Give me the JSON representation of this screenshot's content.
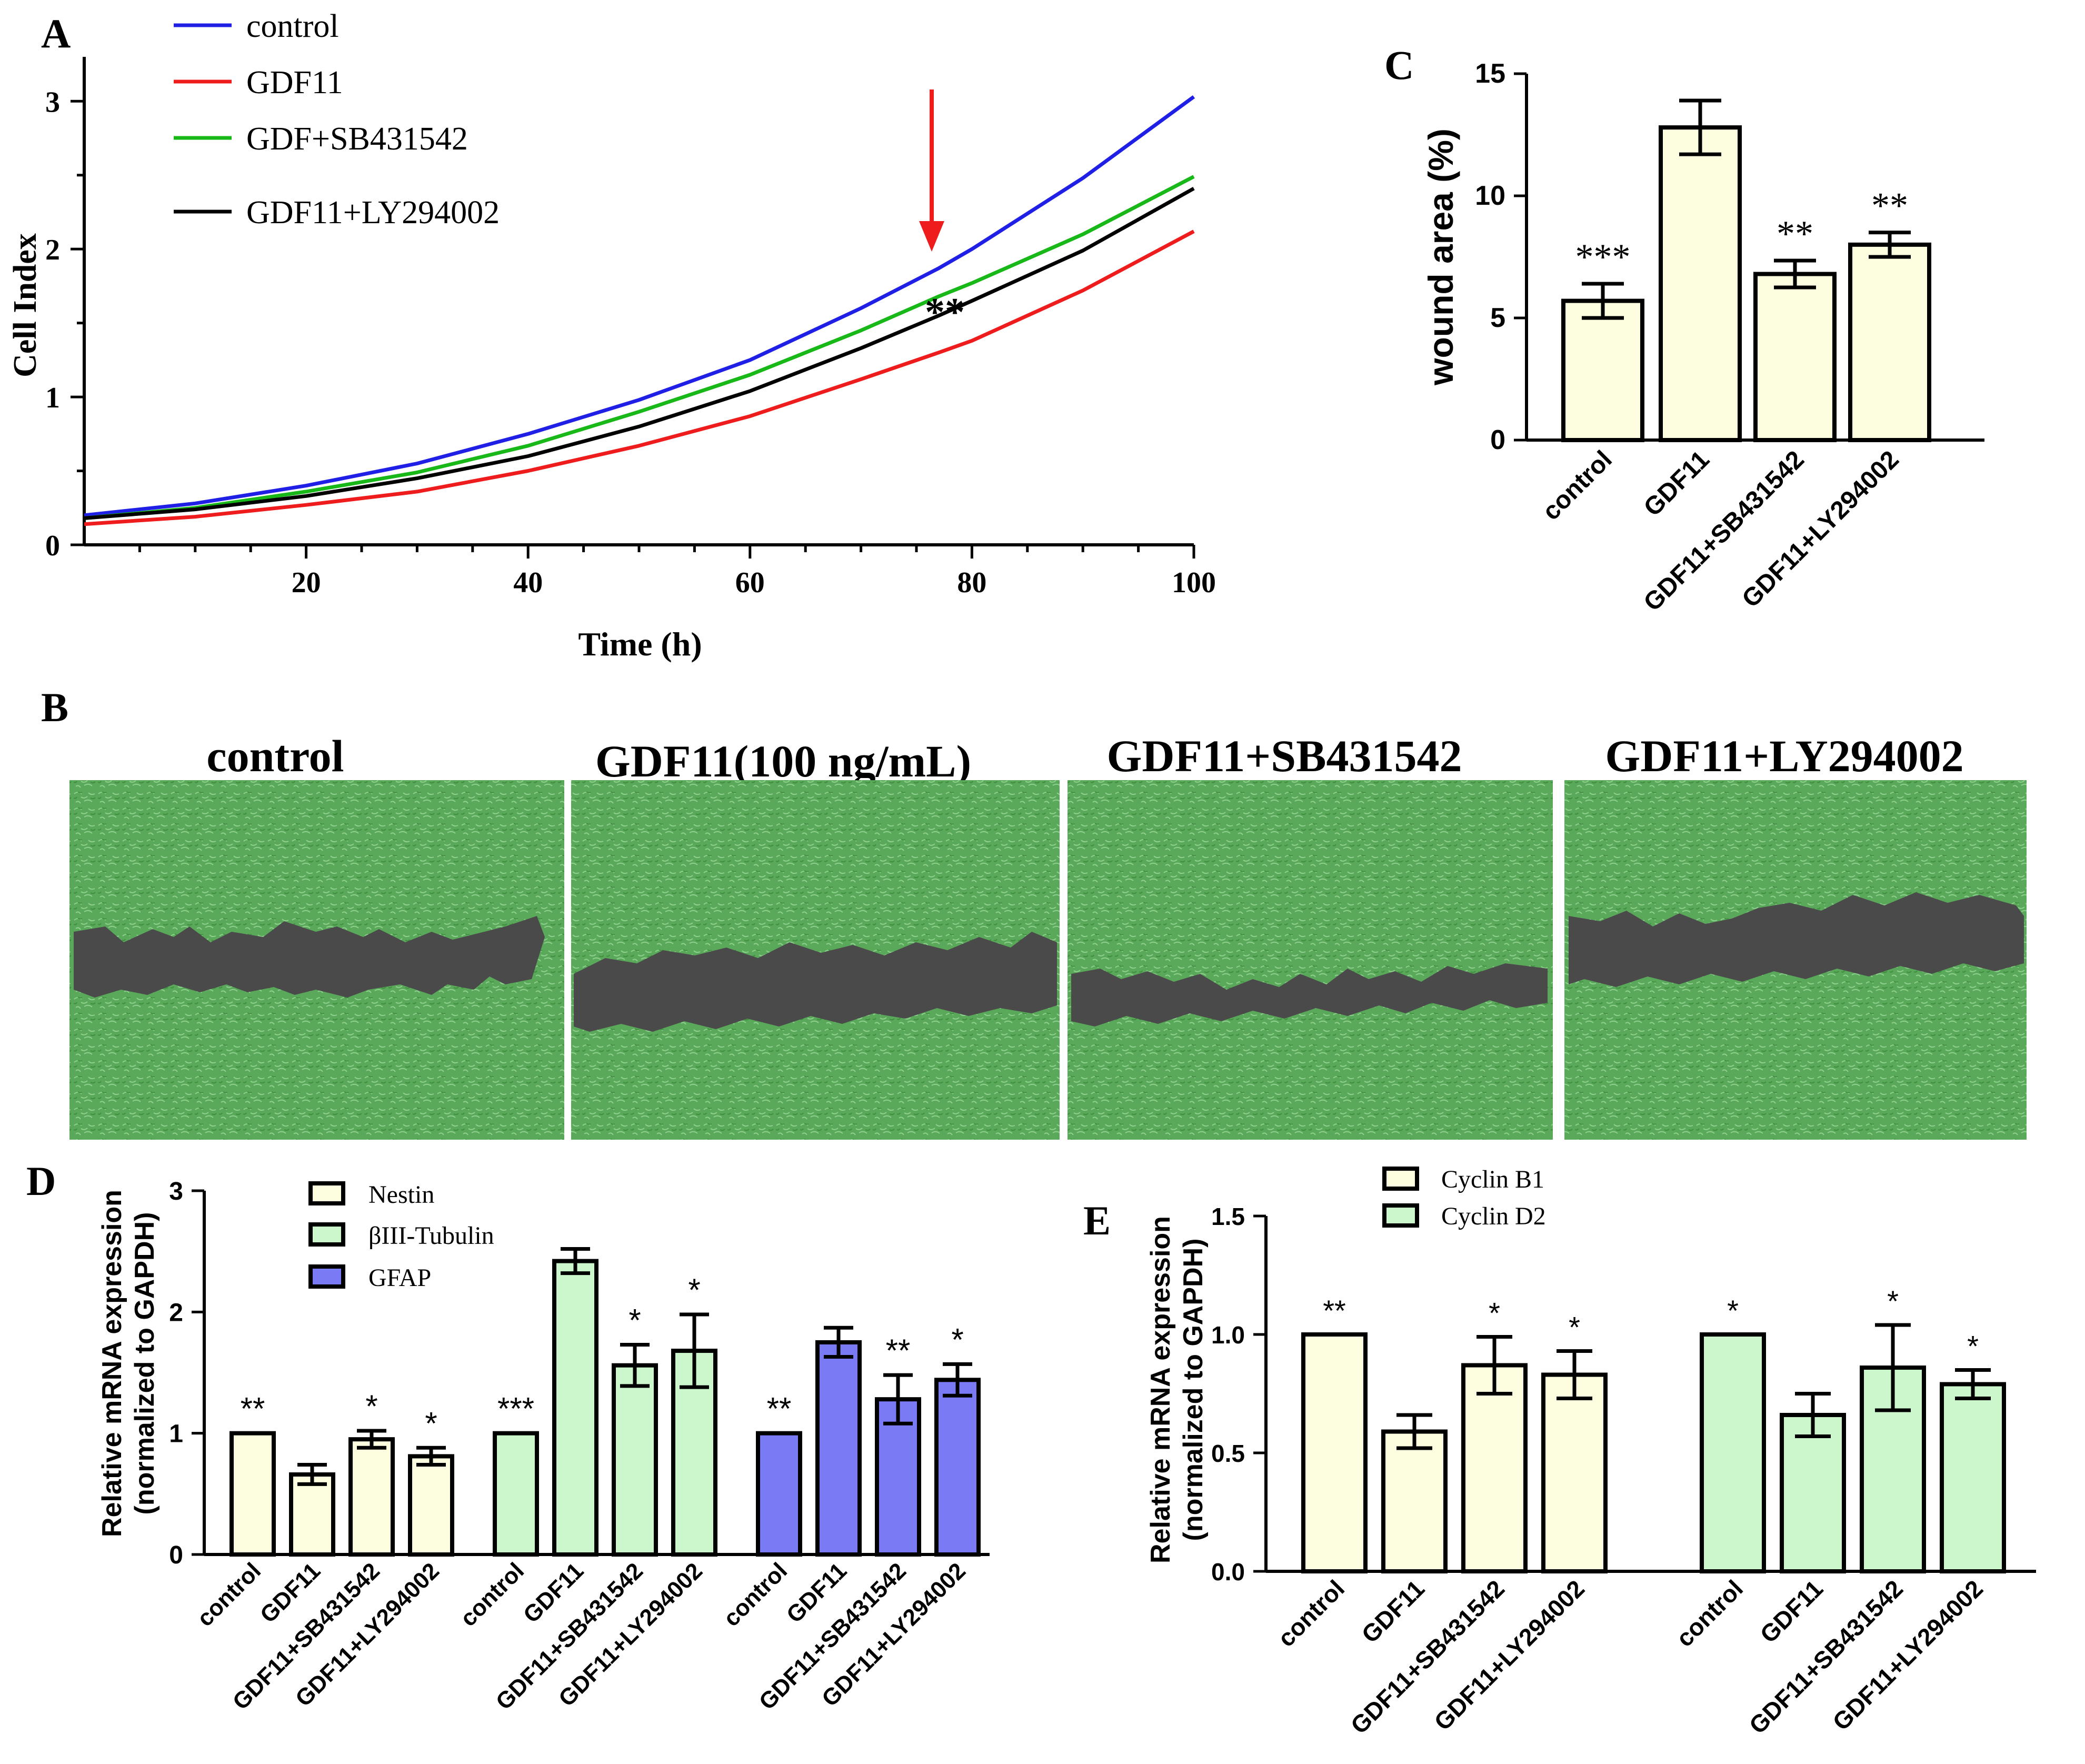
{
  "panels": {
    "A": "A",
    "B": "B",
    "C": "C",
    "D": "D",
    "E": "E"
  },
  "colors": {
    "control": "#1f1fe6",
    "gdf11": "#ee1c1c",
    "sb": "#17b817",
    "ly": "#000000",
    "nestin": "#fdfde0",
    "tubulin": "#ccf7cc",
    "gfap": "#7a7af5",
    "image_green": "#5aa85a",
    "wound_gray": "#4a4a4a"
  },
  "chart_data": [
    {
      "id": "A",
      "type": "line",
      "title": "",
      "xlabel": "Time (h)",
      "ylabel": "Cell Index",
      "xlim": [
        0,
        100
      ],
      "ylim": [
        0,
        3.3
      ],
      "xticks": [
        20,
        40,
        60,
        80,
        100
      ],
      "yticks": [
        0,
        1,
        2,
        3
      ],
      "x": [
        0,
        10,
        20,
        30,
        40,
        50,
        60,
        70,
        77,
        80,
        90,
        100
      ],
      "series": [
        {
          "name": "control",
          "color": "#1f1fe6",
          "values": [
            0.2,
            0.28,
            0.4,
            0.55,
            0.75,
            0.98,
            1.25,
            1.6,
            1.87,
            2.0,
            2.48,
            3.03
          ]
        },
        {
          "name": "GDF11",
          "color": "#ee1c1c",
          "values": [
            0.14,
            0.19,
            0.27,
            0.36,
            0.5,
            0.67,
            0.87,
            1.12,
            1.3,
            1.38,
            1.72,
            2.12
          ]
        },
        {
          "name": "GDF+SB431542",
          "color": "#17b817",
          "values": [
            0.18,
            0.25,
            0.36,
            0.49,
            0.67,
            0.9,
            1.15,
            1.45,
            1.68,
            1.77,
            2.1,
            2.49
          ]
        },
        {
          "name": "GDF11+LY294002",
          "color": "#000000",
          "values": [
            0.18,
            0.24,
            0.33,
            0.45,
            0.6,
            0.8,
            1.04,
            1.33,
            1.55,
            1.65,
            1.99,
            2.41
          ]
        }
      ],
      "legend": [
        "control",
        "GDF11",
        "GDF+SB431542",
        "GDF11+LY294002"
      ],
      "annotations": {
        "arrow_x": 77,
        "significance": "**"
      }
    },
    {
      "id": "C",
      "type": "bar",
      "title": "",
      "ylabel": "wound area (%)",
      "ylim": [
        0,
        15
      ],
      "yticks": [
        0,
        5,
        10,
        15
      ],
      "categories": [
        "control",
        "GDF11",
        "GDF11+SB431542",
        "GDF11+LY294002"
      ],
      "values": [
        5.7,
        12.8,
        6.8,
        8.0
      ],
      "errors": [
        0.7,
        1.1,
        0.55,
        0.5
      ],
      "significance": [
        "***",
        "",
        "**",
        "**"
      ]
    },
    {
      "id": "D",
      "type": "bar",
      "ylabel_line1": "Relative mRNA expression",
      "ylabel_line2": "(normalized to GAPDH)",
      "ylim": [
        0,
        3
      ],
      "yticks": [
        0,
        1,
        2,
        3
      ],
      "categories": [
        "control",
        "GDF11",
        "GDF11+SB431542",
        "GDF11+LY294002"
      ],
      "series": [
        {
          "name": "Nestin",
          "color": "#fdfde0",
          "values": [
            1.0,
            0.66,
            0.95,
            0.81
          ],
          "errors": [
            0,
            0.08,
            0.07,
            0.07
          ],
          "significance": [
            "**",
            "",
            "*",
            "*"
          ]
        },
        {
          "name": "βIII-Tubulin",
          "color": "#ccf7cc",
          "values": [
            1.0,
            2.42,
            1.56,
            1.68
          ],
          "errors": [
            0,
            0.1,
            0.17,
            0.3
          ],
          "significance": [
            "***",
            "",
            "*",
            "*"
          ]
        },
        {
          "name": "GFAP",
          "color": "#7a7af5",
          "values": [
            1.0,
            1.75,
            1.28,
            1.44
          ],
          "errors": [
            0,
            0.12,
            0.2,
            0.13
          ],
          "significance": [
            "**",
            "",
            "**",
            "*"
          ]
        }
      ]
    },
    {
      "id": "E",
      "type": "bar",
      "ylabel_line1": "Relative mRNA expression",
      "ylabel_line2": "(normalized to GAPDH)",
      "ylim": [
        0,
        1.5
      ],
      "yticks": [
        0.0,
        0.5,
        1.0,
        1.5
      ],
      "ytick_labels": [
        "0.0",
        "0.5",
        "1.0",
        "1.5"
      ],
      "categories": [
        "control",
        "GDF11",
        "GDF11+SB431542",
        "GDF11+LY294002"
      ],
      "series": [
        {
          "name": "Cyclin B1",
          "color": "#fdfde0",
          "values": [
            1.0,
            0.59,
            0.87,
            0.83
          ],
          "errors": [
            0,
            0.07,
            0.12,
            0.1
          ],
          "significance": [
            "**",
            "",
            "*",
            "*"
          ]
        },
        {
          "name": "Cyclin D2",
          "color": "#ccf7cc",
          "values": [
            1.0,
            0.66,
            0.86,
            0.79
          ],
          "errors": [
            0,
            0.09,
            0.18,
            0.06
          ],
          "significance": [
            "*",
            "",
            "*",
            "*"
          ]
        }
      ]
    }
  ],
  "images": [
    {
      "title": "control"
    },
    {
      "title": "GDF11(100 ng/mL)"
    },
    {
      "title": "GDF11+SB431542"
    },
    {
      "title": "GDF11+LY294002"
    }
  ]
}
